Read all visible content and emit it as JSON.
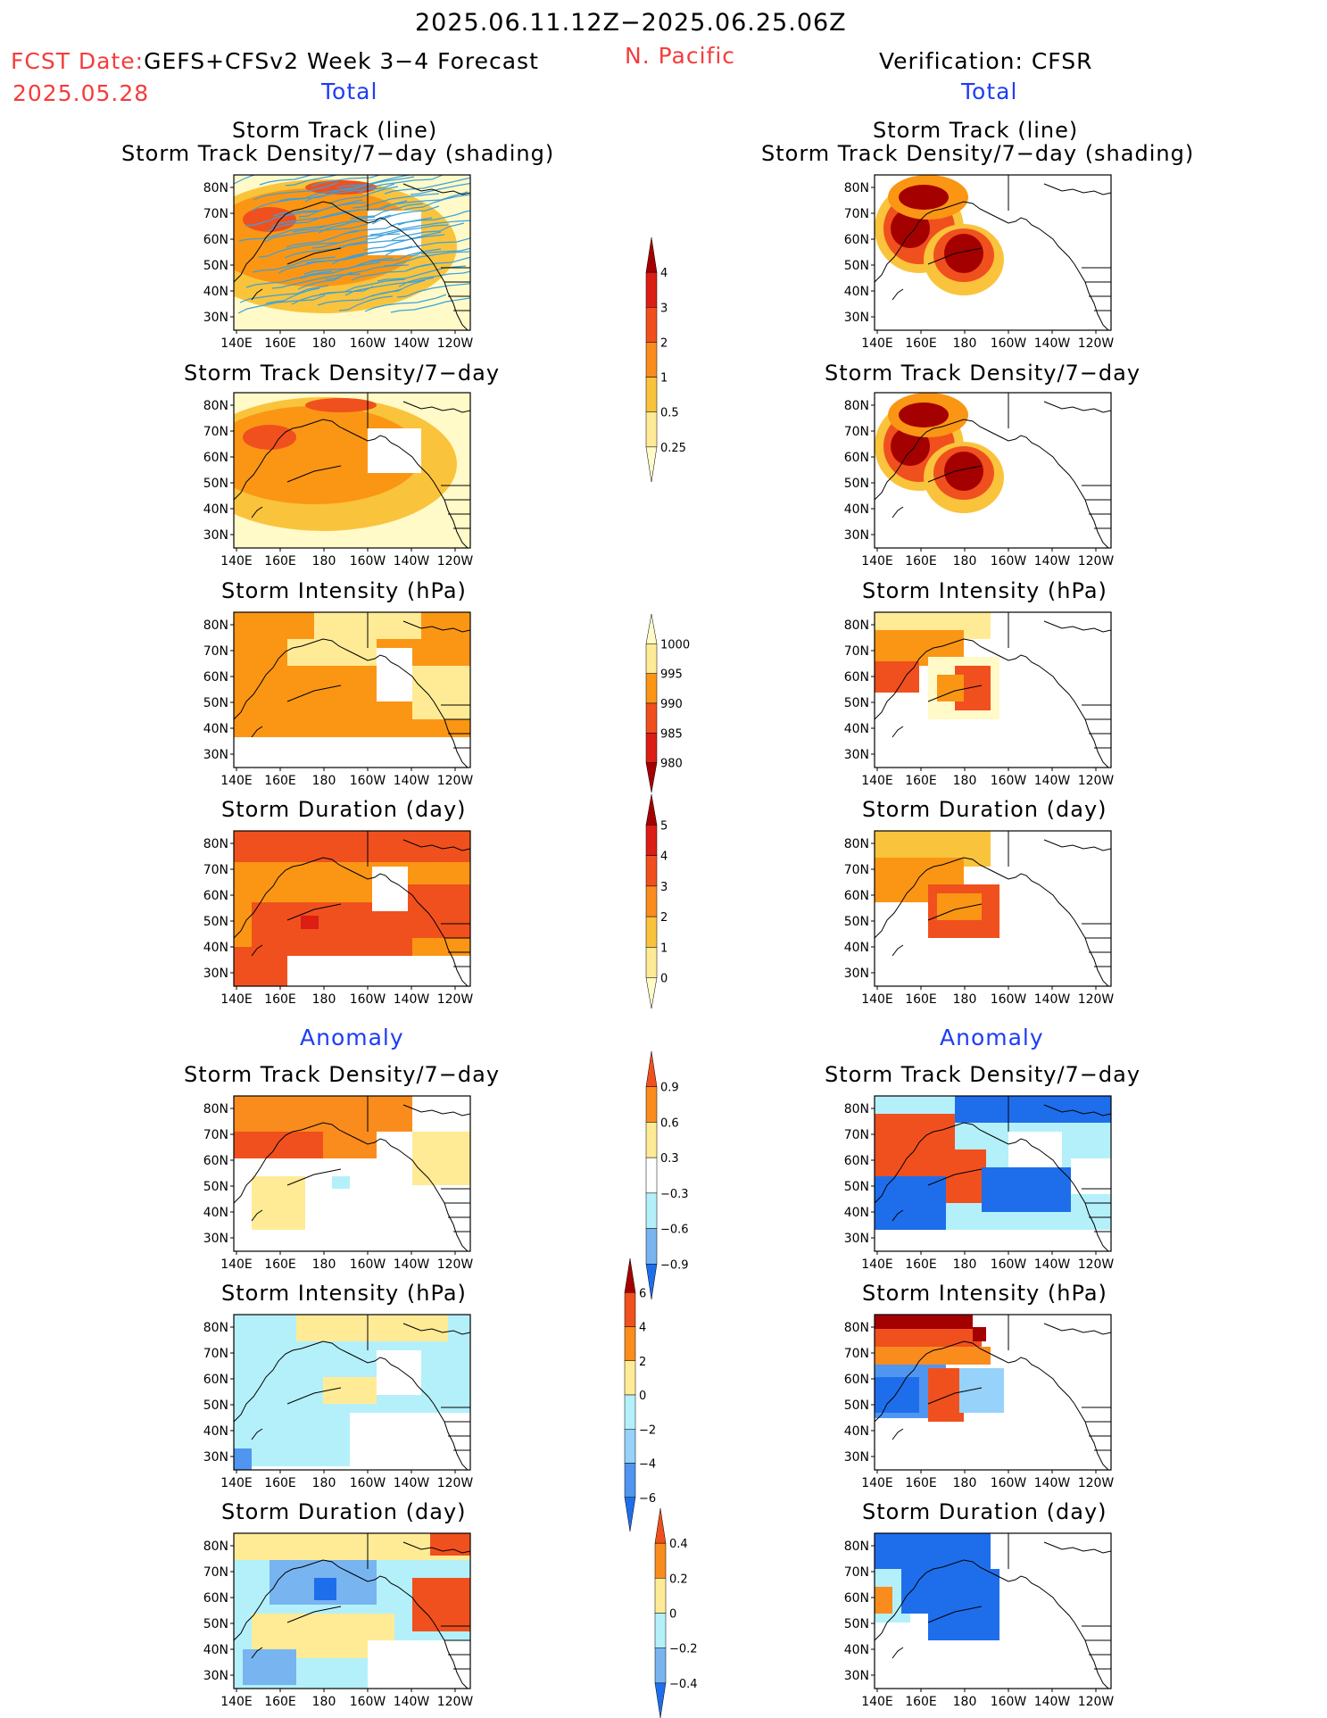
{
  "header": {
    "date_range": "2025.06.11.12Z−2025.06.25.06Z",
    "fcst_date_label": "FCST Date:",
    "fcst_model": "GEFS+CFSv2 Week 3−4 Forecast",
    "fcst_date": "2025.05.28",
    "region": "N. Pacific",
    "verification": "Verification: CFSR"
  },
  "sections": {
    "total_left": "Total",
    "total_right": "Total",
    "anomaly_left": "Anomaly",
    "anomaly_right": "Anomaly"
  },
  "panels": {
    "track_line": "Storm Track (line)",
    "track_density_shading": "Storm Track Density/7−day (shading)",
    "track_density": "Storm Track Density/7−day",
    "intensity": "Storm Intensity (hPa)",
    "duration": "Storm Duration (day)"
  },
  "axes": {
    "lon_labels": [
      "140E",
      "160E",
      "180",
      "160W",
      "140W",
      "120W"
    ],
    "lat_labels": [
      "80N",
      "70N",
      "60N",
      "50N",
      "40N",
      "30N"
    ]
  },
  "colorbars": [
    {
      "name": "density-total",
      "labels": [
        "4",
        "3",
        "2",
        "1",
        "0.5",
        "0.25"
      ],
      "colors": [
        "#a50000",
        "#dc1e14",
        "#f0501e",
        "#fa8c1e",
        "#fac33c",
        "#ffeb96",
        "#fffac8"
      ]
    },
    {
      "name": "intensity-total",
      "labels": [
        "1000",
        "995",
        "990",
        "985",
        "980"
      ],
      "colors": [
        "#fffac8",
        "#ffeb96",
        "#fa9614",
        "#f0501e",
        "#dc1e14",
        "#a50000"
      ]
    },
    {
      "name": "duration-total",
      "labels": [
        "5",
        "4",
        "3",
        "2",
        "1",
        "0"
      ],
      "colors": [
        "#a50000",
        "#dc1e14",
        "#f0501e",
        "#fa8c1e",
        "#fac33c",
        "#ffeb96",
        "#fffac8"
      ]
    },
    {
      "name": "density-anom",
      "labels": [
        "0.9",
        "0.6",
        "0.3",
        "−0.3",
        "−0.6",
        "−0.9"
      ],
      "colors": [
        "#f0501e",
        "#fa8c1e",
        "#ffeb96",
        "#ffffff",
        "#b4f0fa",
        "#78b4f0",
        "#1e6eeb"
      ]
    },
    {
      "name": "intensity-anom",
      "labels": [
        "6",
        "4",
        "2",
        "0",
        "−2",
        "−4",
        "−6"
      ],
      "colors": [
        "#a50000",
        "#f0501e",
        "#fa8c1e",
        "#ffeb96",
        "#b4f0fa",
        "#96d2fa",
        "#5096f0",
        "#1e6eeb"
      ]
    },
    {
      "name": "duration-anom",
      "labels": [
        "0.4",
        "0.2",
        "0",
        "−0.2",
        "−0.4"
      ],
      "colors": [
        "#f0501e",
        "#fa8c1e",
        "#ffeb96",
        "#b4f0fa",
        "#78b4f0",
        "#1e6eeb"
      ]
    }
  ],
  "colors": {
    "yellow_light": "#fffac8",
    "yellow": "#ffeb96",
    "orange_light": "#fac33c",
    "orange": "#fa9614",
    "orange_red": "#f0501e",
    "red": "#dc1e14",
    "dark_red": "#a50000",
    "cyan_light": "#b4f0fa",
    "blue_light": "#78b4f0",
    "blue": "#1e6eeb",
    "track_line": "#3ca0dc"
  }
}
